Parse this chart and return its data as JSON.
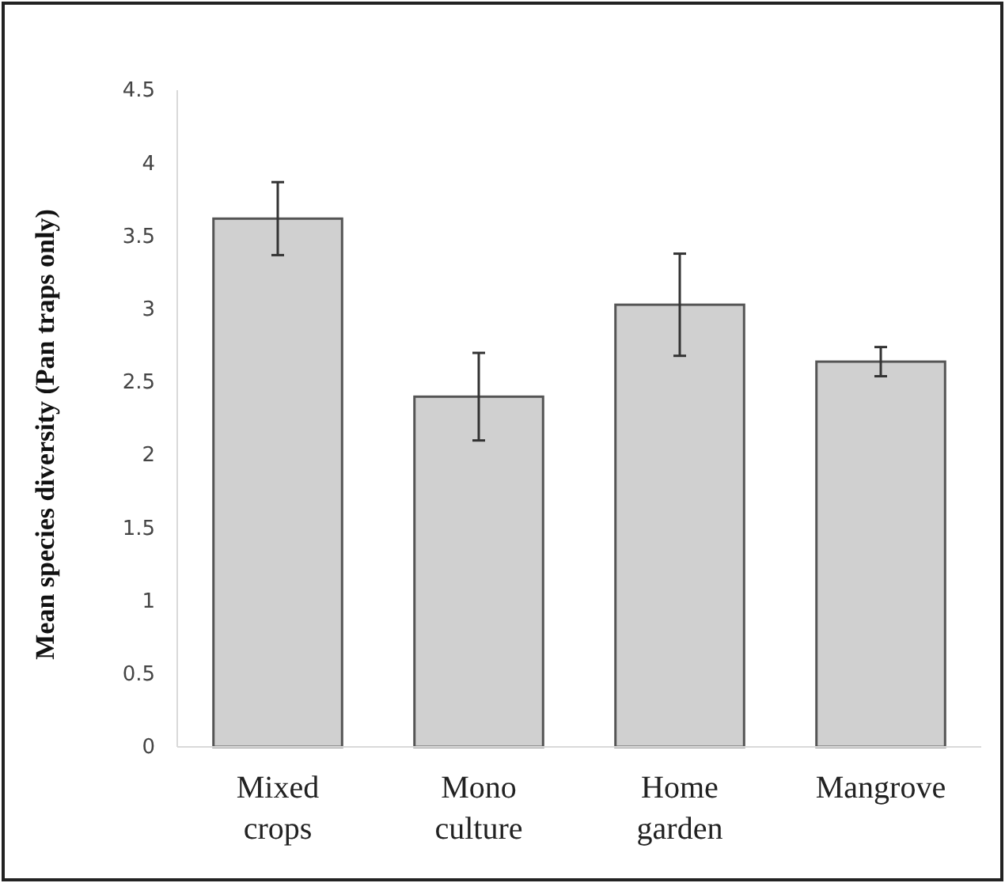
{
  "chart_data": {
    "type": "bar",
    "ylabel": "Mean species diversity (Pan traps only)",
    "categories": [
      "Mixed crops",
      "Mono culture",
      "Home garden",
      "Mangrove"
    ],
    "values": [
      3.62,
      2.4,
      3.03,
      2.64
    ],
    "errors": [
      0.25,
      0.3,
      0.35,
      0.1
    ],
    "color": "#d0d0d0",
    "ylim": [
      0,
      4.5
    ],
    "yticks": [
      0,
      0.5,
      1,
      1.5,
      2,
      2.5,
      3,
      3.5,
      4,
      4.5
    ],
    "grid": false
  }
}
